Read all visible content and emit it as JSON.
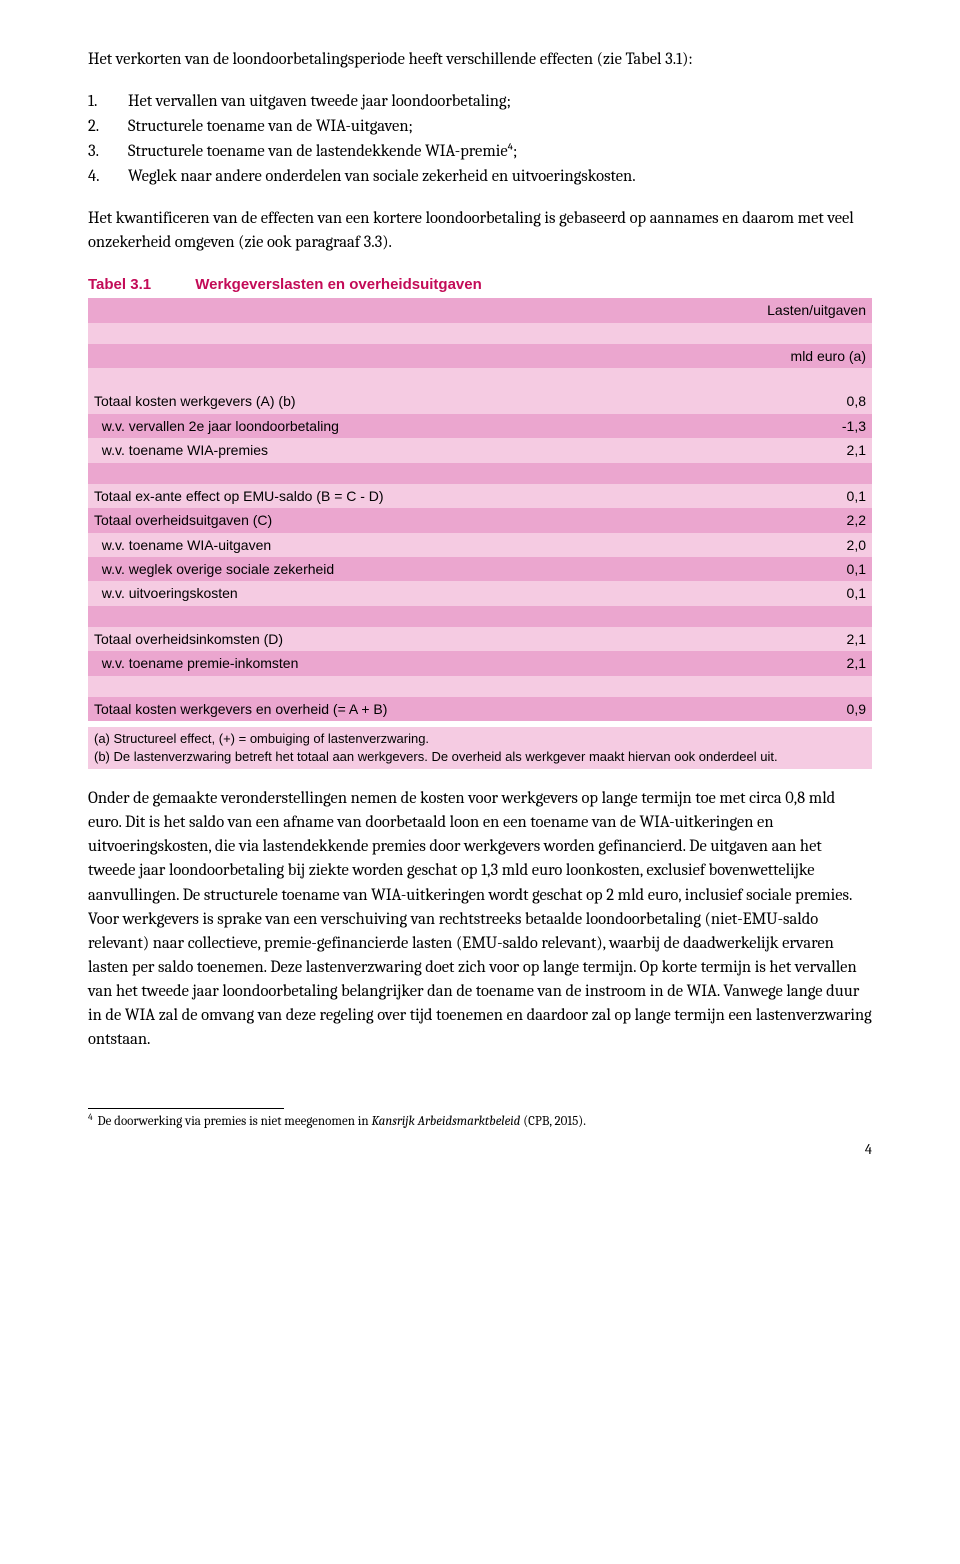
{
  "intro": "Het verkorten van de loondoorbetalingsperiode heeft verschillende effecten (zie Tabel 3.1):",
  "list": [
    "Het vervallen van uitgaven tweede jaar loondoorbetaling;",
    "Structurele toename van de WIA-uitgaven;",
    "Structurele toename van de lastendekkende WIA-premie⁴;",
    "Weglek naar andere onderdelen van sociale zekerheid en uitvoeringskosten."
  ],
  "para_after_list": "Het kwantificeren van de effecten van een kortere loondoorbetaling is gebaseerd op aannames en daarom met veel onzekerheid omgeven (zie ook paragraaf 3.3).",
  "table": {
    "label": "Tabel 3.1",
    "title": "Werkgeverslasten en overheidsuitgaven",
    "header1": "Lasten/uitgaven",
    "header2": "mld euro (a)",
    "rows": [
      {
        "label": "Totaal kosten werkgevers (A) (b)",
        "value": "0,8",
        "shade": "light"
      },
      {
        "label": "  w.v. vervallen 2e jaar loondoorbetaling",
        "value": "-1,3",
        "shade": "dark"
      },
      {
        "label": "  w.v. toename WIA-premies",
        "value": "2,1",
        "shade": "light"
      },
      {
        "label": "",
        "value": "",
        "shade": "dark"
      },
      {
        "label": "Totaal ex-ante effect op EMU-saldo  (B = C - D)",
        "value": "0,1",
        "shade": "light"
      },
      {
        "label": "Totaal overheidsuitgaven (C)",
        "value": "2,2",
        "shade": "dark"
      },
      {
        "label": "  w.v. toename WIA-uitgaven",
        "value": "2,0",
        "shade": "light"
      },
      {
        "label": "  w.v. weglek overige sociale zekerheid",
        "value": "0,1",
        "shade": "dark"
      },
      {
        "label": "  w.v. uitvoeringskosten",
        "value": "0,1",
        "shade": "light"
      },
      {
        "label": "",
        "value": "",
        "shade": "dark"
      },
      {
        "label": "Totaal overheidsinkomsten (D)",
        "value": "2,1",
        "shade": "light"
      },
      {
        "label": "  w.v. toename premie-inkomsten",
        "value": "2,1",
        "shade": "dark"
      },
      {
        "label": "",
        "value": "",
        "shade": "light"
      },
      {
        "label": "Totaal kosten werkgevers en overheid (= A + B)",
        "value": "0,9",
        "shade": "dark"
      }
    ],
    "footnote_a": "(a) Structureel effect, (+) = ombuiging of lastenverzwaring.",
    "footnote_b": "(b) De lastenverzwaring betreft het totaal aan werkgevers. De overheid als werkgever maakt hiervan ook onderdeel uit."
  },
  "body_para": "Onder de gemaakte veronderstellingen nemen de kosten voor werkgevers op lange termijn toe met circa 0,8 mld euro. Dit is het saldo van een afname van doorbetaald loon en een toename van de WIA-uitkeringen en uitvoeringskosten, die via lastendekkende premies door werkgevers worden gefinancierd. De uitgaven aan het tweede jaar loondoorbetaling bij ziekte worden geschat op 1,3 mld euro loonkosten, exclusief bovenwettelijke aanvullingen. De structurele toename van WIA-uitkeringen wordt geschat op 2 mld euro, inclusief sociale premies. Voor werkgevers is sprake van een verschuiving van rechtstreeks betaalde loondoorbetaling (niet-EMU-saldo relevant) naar collectieve, premie-gefinancierde lasten (EMU-saldo relevant), waarbij de daadwerkelijk ervaren lasten per saldo toenemen. Deze lastenverzwaring doet zich voor op lange termijn. Op korte termijn is het vervallen van het tweede jaar loondoorbetaling belangrijker dan de toename van de instroom in de WIA. Vanwege lange duur in de WIA zal de omvang van deze regeling over tijd toenemen en daardoor zal op lange termijn een lastenverzwaring ontstaan.",
  "footnote4_num": "4",
  "footnote4_pre": " De doorwerking via premies is niet meegenomen in ",
  "footnote4_em": "Kansrijk Arbeidsmarktbeleid",
  "footnote4_post": " (CPB, 2015).",
  "page_number": "4"
}
